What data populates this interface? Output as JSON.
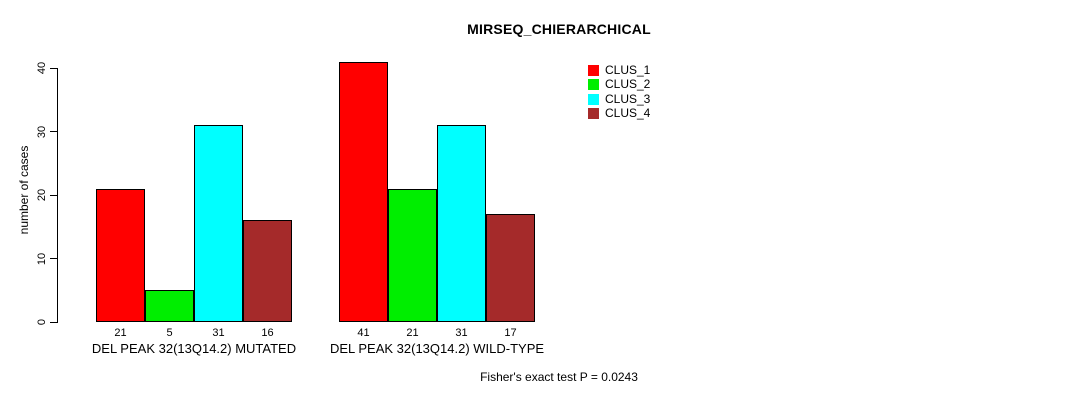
{
  "chart_data": {
    "type": "bar",
    "title": "MIRSEQ_CHIERARCHICAL",
    "ylabel": "number of cases",
    "xlabel": "",
    "ylim": [
      0,
      40
    ],
    "yticks": [
      0,
      10,
      20,
      30,
      40
    ],
    "grid": false,
    "legend_position": "top-right-inside",
    "categories": [
      "DEL PEAK 32(13Q14.2) MUTATED",
      "DEL PEAK 32(13Q14.2) WILD-TYPE"
    ],
    "series": [
      {
        "name": "CLUS_1",
        "color": "#ff0000",
        "values": [
          21,
          41
        ]
      },
      {
        "name": "CLUS_2",
        "color": "#00ee00",
        "values": [
          5,
          21
        ]
      },
      {
        "name": "CLUS_3",
        "color": "#00ffff",
        "values": [
          31,
          31
        ]
      },
      {
        "name": "CLUS_4",
        "color": "#a52a2a",
        "values": [
          16,
          17
        ]
      }
    ],
    "bar_value_labels": [
      [
        "21",
        "5",
        "31",
        "16"
      ],
      [
        "41",
        "21",
        "31",
        "17"
      ]
    ],
    "annotation": "Fisher's exact test P = 0.0243",
    "axis_color": "#000000",
    "bar_border_color": "#000000",
    "background_color": "#ffffff"
  }
}
